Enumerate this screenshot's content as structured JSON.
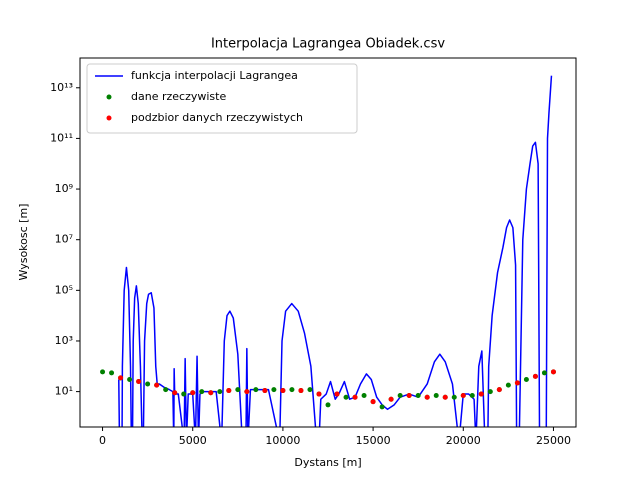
{
  "chart_data": {
    "type": "mixed",
    "title": "Interpolacja Lagrangea Obiadek.csv",
    "x_label": "Dystans [m]",
    "y_label": "Wysokosc [m]",
    "y_log": true,
    "legend": "upper left",
    "xlim": [
      -1250,
      26250
    ],
    "ylim": [
      0.4,
      150000000000000
    ],
    "xticks": [
      0,
      5000,
      10000,
      15000,
      20000,
      25000
    ],
    "yticks": [
      {
        "value": 10,
        "label": "10¹"
      },
      {
        "value": 1000,
        "label": "10³"
      },
      {
        "value": 100000,
        "label": "10⁵"
      },
      {
        "value": 10000000,
        "label": "10⁷"
      },
      {
        "value": 1000000000,
        "label": "10⁹"
      },
      {
        "value": 100000000000,
        "label": "10¹¹"
      },
      {
        "value": 10000000000000,
        "label": "10¹³"
      }
    ],
    "series": [
      {
        "name": "funkcja interpolacji Lagrangea",
        "color": "#0000ff",
        "kind": "line",
        "x": [
          900,
          940,
          1080,
          1100,
          1200,
          1325,
          1450,
          1550,
          1600,
          1660,
          1700,
          1780,
          1876,
          1980,
          2100,
          2200,
          2260,
          2330,
          2450,
          2550,
          2700,
          2850,
          2950,
          3030,
          3150,
          3400,
          3700,
          3900,
          3950,
          3970,
          4000,
          4200,
          4520,
          4580,
          4650,
          4750,
          5000,
          5150,
          5240,
          5320,
          5400,
          5600,
          5900,
          6300,
          6600,
          6750,
          6900,
          7060,
          7250,
          7500,
          7750,
          7950,
          8000,
          8060,
          8200,
          8600,
          9200,
          9820,
          9950,
          10150,
          10490,
          10850,
          11200,
          11550,
          11870,
          12000,
          12100,
          12400,
          12640,
          12900,
          13100,
          13410,
          13700,
          14000,
          14300,
          14630,
          14900,
          15200,
          15500,
          15800,
          16170,
          16500,
          17000,
          17500,
          18000,
          18400,
          18700,
          19000,
          19400,
          19760,
          20000,
          20300,
          20600,
          20700,
          20860,
          21030,
          21200,
          21360,
          21410,
          21600,
          21900,
          22200,
          22400,
          22570,
          22750,
          22900,
          22960,
          23100,
          23300,
          23500,
          23700,
          23850,
          24000,
          24150,
          24230,
          24400,
          24600,
          24670,
          24750,
          24890
        ],
        "values": [
          30,
          0.1,
          0.1,
          100,
          100000,
          800000,
          100000,
          100,
          0.1,
          0.1,
          1000,
          50000,
          150000,
          30000,
          100,
          0.1,
          0.1,
          1000,
          30000,
          70000,
          80000,
          20000,
          100,
          20,
          20,
          15,
          12,
          10,
          0.1,
          80,
          8,
          8,
          0.1,
          200,
          0.1,
          8,
          8,
          0.1,
          250,
          0.1,
          8,
          10,
          10,
          10,
          0.1,
          1000,
          10000,
          15000,
          8000,
          300,
          0.1,
          0.1,
          500,
          0.1,
          12,
          12,
          12,
          0.1,
          1000,
          15000,
          30000,
          15000,
          2000,
          100,
          0.1,
          0.1,
          5,
          8,
          25,
          5,
          8,
          25,
          5,
          6,
          20,
          50,
          30,
          6,
          3,
          2,
          3,
          6,
          8,
          6,
          20,
          150,
          300,
          150,
          20,
          0.1,
          8,
          8,
          5,
          0.1,
          100,
          400,
          0.1,
          0.1,
          100,
          10000,
          500000,
          5000000,
          30000000,
          60000000,
          30000000,
          1000000,
          0.1,
          0.1,
          10000000,
          1000000000,
          10000000000,
          50000000000,
          70000000000,
          10000000000,
          0.1,
          0.1,
          0.1,
          100000000000,
          1000000000000,
          30000000000000
        ]
      },
      {
        "name": "dane rzeczywiste",
        "color": "#008000",
        "kind": "scatter",
        "x": [
          0,
          500,
          1000,
          1500,
          2000,
          2500,
          3000,
          3500,
          4000,
          4500,
          5000,
          5500,
          6000,
          6500,
          7000,
          7500,
          8000,
          8500,
          9000,
          9500,
          10000,
          10500,
          11000,
          11500,
          12000,
          12500,
          13000,
          13500,
          14000,
          14500,
          15000,
          15500,
          16000,
          16500,
          17000,
          17500,
          18000,
          18500,
          19000,
          19500,
          20000,
          20500,
          21000,
          21500,
          22000,
          22500,
          23000,
          23500,
          24000,
          24500,
          25000
        ],
        "values": [
          60,
          55,
          35,
          30,
          25,
          20,
          18,
          12,
          9,
          8,
          9,
          10,
          9,
          10,
          11,
          12,
          10,
          12,
          11,
          12,
          11,
          12,
          11,
          12,
          8,
          3,
          8,
          6,
          6,
          7,
          4,
          2.5,
          5,
          7,
          7,
          7,
          6,
          7,
          6,
          6,
          7,
          7,
          8,
          10,
          12,
          18,
          22,
          30,
          40,
          55,
          60
        ]
      },
      {
        "name": "podzbior danych rzeczywistych",
        "color": "#ff0000",
        "kind": "scatter",
        "x": [
          1000,
          2000,
          3000,
          4000,
          5000,
          6000,
          7000,
          8000,
          9000,
          10000,
          11000,
          12000,
          13000,
          14000,
          15000,
          16000,
          17000,
          18000,
          19000,
          20000,
          21000,
          22000,
          23000,
          24000,
          25000
        ],
        "values": [
          35,
          25,
          18,
          9,
          9,
          9,
          11,
          10,
          11,
          11,
          11,
          8,
          8,
          6,
          4,
          5,
          7,
          6,
          6,
          7,
          8,
          12,
          22,
          40,
          60
        ]
      }
    ]
  }
}
